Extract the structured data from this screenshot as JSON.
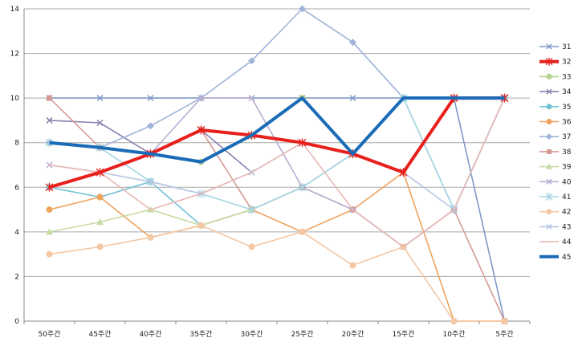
{
  "chart_data": {
    "type": "line",
    "title": "",
    "xlabel": "",
    "ylabel": "",
    "categories": [
      "50주간",
      "45주간",
      "40주간",
      "35주간",
      "30주간",
      "25주간",
      "20주간",
      "15주간",
      "10주간",
      "5주간"
    ],
    "ylim": [
      0,
      14
    ],
    "yticks": [
      0,
      2,
      4,
      6,
      8,
      10,
      12,
      14
    ],
    "grid": "horizontal",
    "legend_position": "right",
    "series": [
      {
        "name": "31",
        "color": "#7f9ac8",
        "marker": "cross",
        "values": [
          10,
          10,
          10,
          10,
          10,
          10,
          10,
          10,
          10,
          0
        ]
      },
      {
        "name": "32",
        "color": "#e8201c",
        "marker": "star",
        "emphasis": "bold",
        "values": [
          6,
          6.67,
          7.5,
          8.57,
          8.33,
          8,
          7.5,
          6.67,
          10,
          10
        ]
      },
      {
        "name": "33",
        "color": "#b5d38e",
        "marker": "circle",
        "values": [
          8,
          7.78,
          7.5,
          7.14,
          8.33,
          10,
          7.5,
          10,
          10,
          10
        ]
      },
      {
        "name": "34",
        "color": "#8b7fae",
        "marker": "cross",
        "values": [
          9,
          8.89,
          7.5,
          8.57,
          6.67,
          null,
          null,
          null,
          null,
          null
        ]
      },
      {
        "name": "35",
        "color": "#72c3d4",
        "marker": "circle",
        "values": [
          6,
          5.56,
          6.25,
          4.29,
          5,
          6,
          7.5,
          10,
          5,
          10
        ]
      },
      {
        "name": "36",
        "color": "#f0a35e",
        "marker": "circle",
        "values": [
          5,
          5.56,
          3.75,
          4.29,
          5,
          4,
          5,
          6.67,
          0,
          0
        ]
      },
      {
        "name": "37",
        "color": "#a0b3d8",
        "marker": "diamond",
        "values": [
          8,
          7.78,
          8.75,
          10,
          11.67,
          14,
          12.5,
          10,
          10,
          10
        ]
      },
      {
        "name": "38",
        "color": "#d49a94",
        "marker": "square",
        "values": [
          10,
          7.78,
          7.5,
          8.57,
          5,
          6,
          5,
          3.33,
          5,
          0
        ]
      },
      {
        "name": "39",
        "color": "#c7dca4",
        "marker": "triangle",
        "values": [
          4,
          4.44,
          5,
          4.29,
          5,
          null,
          null,
          null,
          null,
          null
        ]
      },
      {
        "name": "40",
        "color": "#b9aed2",
        "marker": "cross",
        "values": [
          7,
          6.67,
          7.5,
          10,
          10,
          6,
          5,
          3.33,
          5,
          10
        ]
      },
      {
        "name": "41",
        "color": "#a8d6e2",
        "marker": "star",
        "values": [
          8,
          7.78,
          6.25,
          5.71,
          5,
          6,
          7.5,
          10,
          5,
          10
        ]
      },
      {
        "name": "42",
        "color": "#f5c7a3",
        "marker": "circle",
        "values": [
          3,
          3.33,
          3.75,
          4.29,
          3.33,
          4,
          2.5,
          3.33,
          0,
          0
        ]
      },
      {
        "name": "43",
        "color": "#b8c7e4",
        "marker": "cross",
        "values": [
          6,
          6.67,
          6.25,
          5.71,
          6.67,
          8,
          7.5,
          6.67,
          5,
          10
        ]
      },
      {
        "name": "44",
        "color": "#e8b8b4",
        "marker": "none",
        "values": [
          7,
          6.67,
          5,
          5.71,
          6.67,
          8,
          5,
          3.33,
          5,
          10
        ]
      },
      {
        "name": "45",
        "color": "#1a6bb8",
        "marker": "none",
        "emphasis": "bold",
        "values": [
          8,
          7.78,
          7.5,
          7.14,
          8.33,
          10,
          7.5,
          10,
          10,
          10
        ]
      }
    ]
  }
}
